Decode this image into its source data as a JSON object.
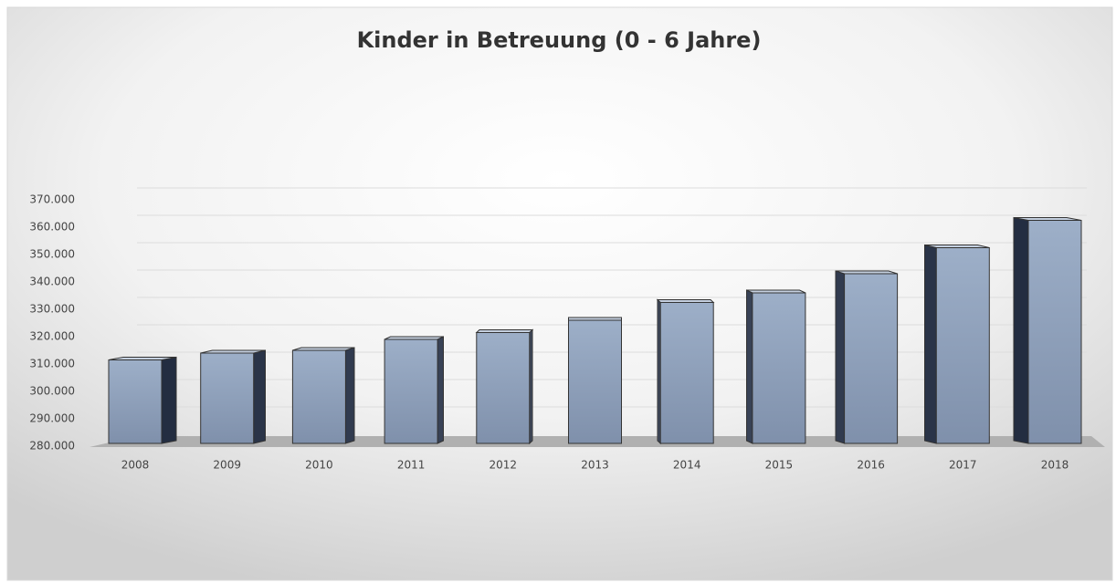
{
  "chart_data": {
    "type": "bar3d",
    "title": "Kinder in Betreuung (0 - 6 Jahre)",
    "categories": [
      "2008",
      "2009",
      "2010",
      "2011",
      "2012",
      "2013",
      "2014",
      "2015",
      "2016",
      "2017",
      "2018"
    ],
    "values": [
      310500,
      313000,
      314000,
      318000,
      320500,
      325000,
      331500,
      335000,
      342000,
      351500,
      361500
    ],
    "color": "#8e9fba",
    "ylim": [
      280000,
      370000
    ],
    "yticks": [
      {
        "value": 280000,
        "label": "280.000"
      },
      {
        "value": 290000,
        "label": "290.000"
      },
      {
        "value": 300000,
        "label": "300.000"
      },
      {
        "value": 310000,
        "label": "310.000"
      },
      {
        "value": 320000,
        "label": "320.000"
      },
      {
        "value": 330000,
        "label": "330.000"
      },
      {
        "value": 340000,
        "label": "340.000"
      },
      {
        "value": 350000,
        "label": "350.000"
      },
      {
        "value": 360000,
        "label": "360.000"
      },
      {
        "value": 370000,
        "label": "370.000"
      }
    ],
    "grid": true
  }
}
